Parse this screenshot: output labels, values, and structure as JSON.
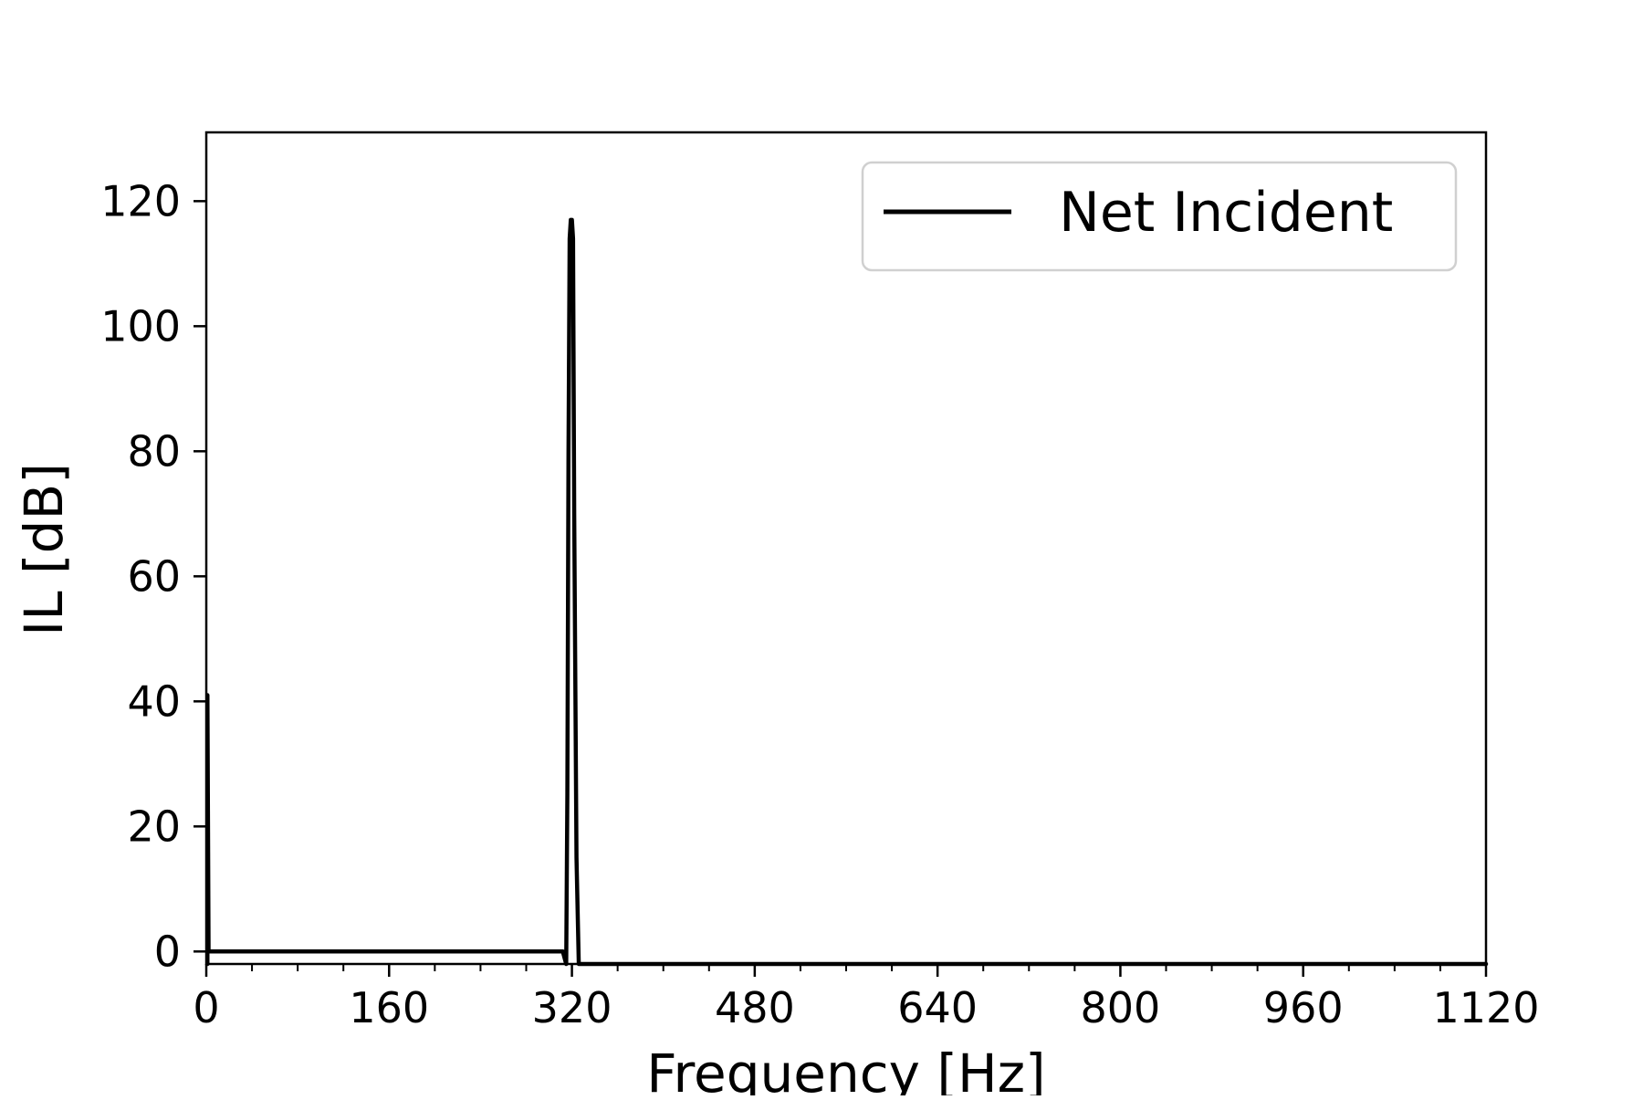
{
  "chart_data": {
    "type": "line",
    "title": "",
    "xlabel": "Frequency [Hz]",
    "ylabel": "IL [dB]",
    "xlim": [
      0,
      1120
    ],
    "ylim": [
      -2,
      131
    ],
    "x_ticks": [
      0,
      160,
      320,
      480,
      640,
      800,
      960,
      1120
    ],
    "x_tick_labels": [
      "0",
      "160",
      "320",
      "480",
      "640",
      "800",
      "960",
      "1120"
    ],
    "x_minor_step": 40,
    "y_ticks": [
      0,
      20,
      40,
      60,
      80,
      100,
      120
    ],
    "y_tick_labels": [
      "0",
      "20",
      "40",
      "60",
      "80",
      "100",
      "120"
    ],
    "grid": false,
    "legend": {
      "placement": "top-right",
      "entries": [
        "Net Incident"
      ]
    },
    "series": [
      {
        "name": "Net Incident",
        "color": "#000000",
        "x": [
          1,
          1,
          2,
          4,
          312,
          315,
          316,
          317,
          318,
          319,
          320,
          321,
          322,
          324,
          326,
          1120
        ],
        "y": [
          -2,
          41,
          0,
          0,
          0,
          -2,
          25,
          80,
          114,
          117,
          117,
          114,
          70,
          15,
          -2,
          -2
        ]
      }
    ]
  }
}
